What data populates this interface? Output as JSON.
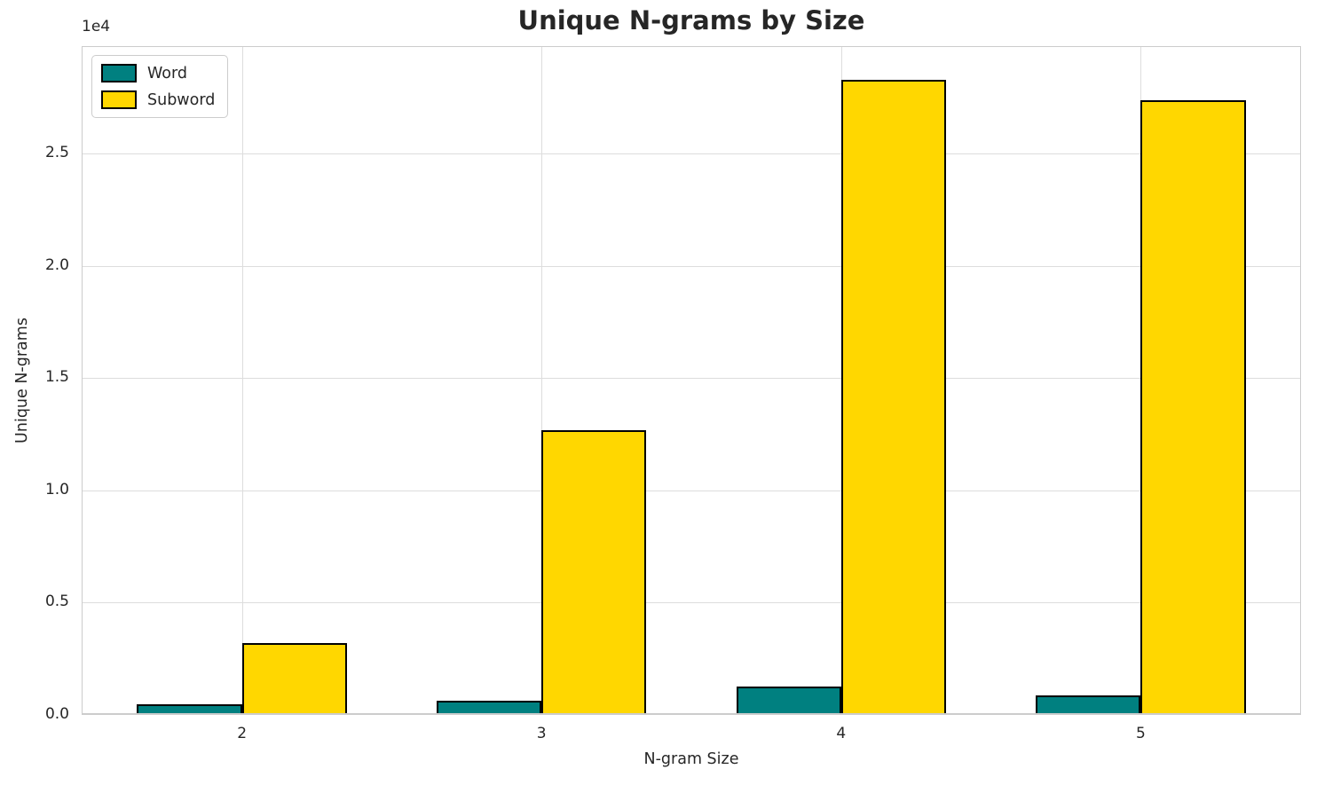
{
  "chart_data": {
    "type": "bar",
    "title": "Unique N-grams by Size",
    "xlabel": "N-gram Size",
    "ylabel": "Unique N-grams",
    "y_offset_label": "1e4",
    "categories": [
      "2",
      "3",
      "4",
      "5"
    ],
    "series": [
      {
        "name": "Word",
        "color": "#008080",
        "values": [
          470,
          640,
          1250,
          880
        ]
      },
      {
        "name": "Subword",
        "color": "#FFD700",
        "values": [
          3200,
          12700,
          28300,
          27400
        ]
      }
    ],
    "yticks": [
      0,
      5000,
      10000,
      15000,
      20000,
      25000
    ],
    "ytick_labels": [
      "0.0",
      "0.5",
      "1.0",
      "1.5",
      "2.0",
      "2.5"
    ],
    "ylim": [
      0,
      29800
    ],
    "bar_width_units": 0.35,
    "grid": true,
    "legend_position": "upper left",
    "bar_edge_color": "#000000",
    "grid_color": "#dddddd",
    "spine_color": "#cccccc",
    "text_color": "#262626"
  }
}
